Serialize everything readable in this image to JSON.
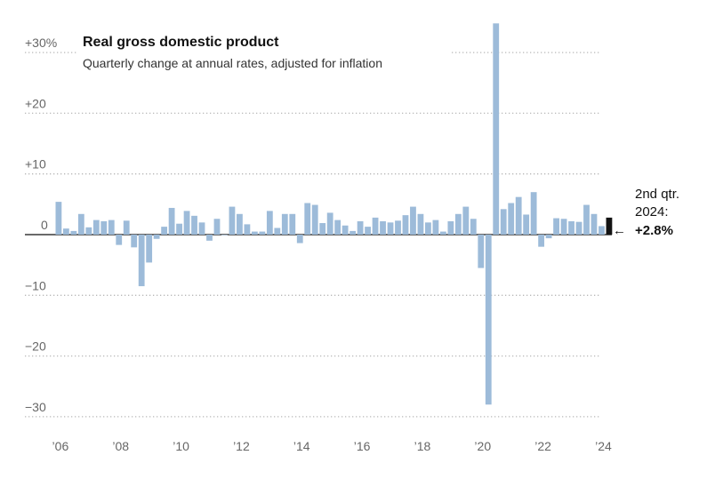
{
  "chart_data": {
    "type": "bar",
    "title": "Real gross domestic product",
    "subtitle": "Quarterly change at annual rates, adjusted for inflation",
    "ylim": [
      -30,
      33.5
    ],
    "y_ticks": [
      {
        "value": 30,
        "label": "+30%"
      },
      {
        "value": 20,
        "label": "+20"
      },
      {
        "value": 10,
        "label": "+10"
      },
      {
        "value": 0,
        "label": "0"
      },
      {
        "value": -10,
        "label": "−10"
      },
      {
        "value": -20,
        "label": "−20"
      },
      {
        "value": -30,
        "label": "−30"
      }
    ],
    "x_ticks": [
      {
        "year": 2006,
        "label": "’06"
      },
      {
        "year": 2008,
        "label": "’08"
      },
      {
        "year": 2010,
        "label": "’10"
      },
      {
        "year": 2012,
        "label": "’12"
      },
      {
        "year": 2014,
        "label": "’14"
      },
      {
        "year": 2016,
        "label": "’16"
      },
      {
        "year": 2018,
        "label": "’18"
      },
      {
        "year": 2020,
        "label": "’20"
      },
      {
        "year": 2022,
        "label": "’22"
      },
      {
        "year": 2024,
        "label": "’24"
      }
    ],
    "grid": true,
    "start_quarter": "2006-Q1",
    "values": [
      5.4,
      1.0,
      0.6,
      3.4,
      1.2,
      2.4,
      2.2,
      2.4,
      -1.7,
      2.3,
      -2.1,
      -8.5,
      -4.6,
      -0.7,
      1.3,
      4.4,
      1.8,
      3.9,
      3.1,
      2.0,
      -1.0,
      2.6,
      0.0,
      4.6,
      3.4,
      1.7,
      0.5,
      0.5,
      3.9,
      1.1,
      3.4,
      3.4,
      -1.4,
      5.2,
      4.9,
      1.9,
      3.6,
      2.4,
      1.5,
      0.6,
      2.2,
      1.3,
      2.8,
      2.2,
      2.0,
      2.3,
      3.2,
      4.6,
      3.4,
      2.0,
      2.4,
      0.5,
      2.2,
      3.4,
      4.6,
      2.6,
      -5.5,
      -28.0,
      34.8,
      4.2,
      5.2,
      6.2,
      3.3,
      7.0,
      -2.0,
      -0.6,
      2.7,
      2.6,
      2.2,
      2.1,
      4.9,
      3.4,
      1.4,
      2.8
    ],
    "highlight": {
      "label_line1": "2nd qtr.",
      "label_line2": "2024:",
      "value_label": "+2.8%",
      "arrow": "←"
    },
    "colors": {
      "bar": "#9dbbd9",
      "highlight": "#121212",
      "zero_line": "#121212",
      "grid": "#b8b8b8"
    }
  }
}
